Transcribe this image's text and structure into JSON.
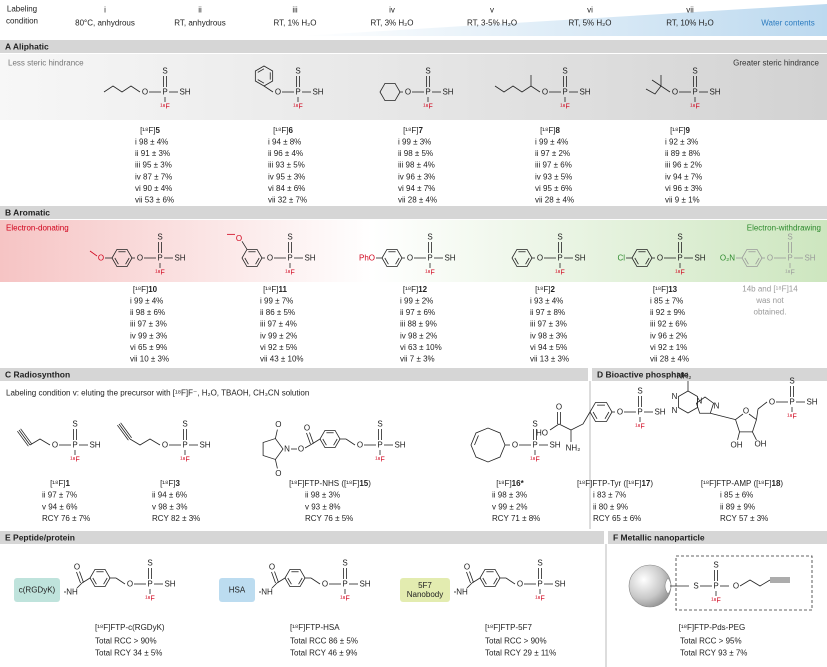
{
  "header": {
    "title_lines": [
      "Labeling",
      "condition"
    ],
    "conditions": [
      {
        "id": "i",
        "text": "80°C, anhydrous"
      },
      {
        "id": "ii",
        "text": "RT, anhydrous"
      },
      {
        "id": "iii",
        "text": "RT, 1% H₂O"
      },
      {
        "id": "iv",
        "text": "RT, 3% H₂O"
      },
      {
        "id": "v",
        "text": "RT, 3-5% H₂O"
      },
      {
        "id": "vi",
        "text": "RT, 5% H₂O"
      },
      {
        "id": "vii",
        "text": "RT, 10% H₂O"
      }
    ],
    "axis": "Water contents"
  },
  "atoms": {
    "S": "S",
    "P": "P",
    "O": "O",
    "SH": "SH",
    "F": "¹⁸F",
    "NH": "NH",
    "NH2": "NH₂",
    "HO": "HO",
    "OH": "OH",
    "N": "N"
  },
  "aliphatic": {
    "title": "A Aliphatic",
    "left": "Less steric hindrance",
    "right": "Greater steric hindrance",
    "compounds": [
      {
        "label": [
          "[¹⁸F]",
          "5"
        ],
        "yields": [
          "i 98 ± 4%",
          "ii 91 ± 3%",
          "iii 95 ± 3%",
          "iv 87 ± 7%",
          "vi 90 ± 4%",
          "vii 53 ± 6%"
        ]
      },
      {
        "label": [
          "[¹⁸F]",
          "6"
        ],
        "yields": [
          "i 94 ± 8%",
          "ii 96 ± 4%",
          "iii 93 ± 5%",
          "iv 95 ± 3%",
          "vi 84 ± 6%",
          "vii 32 ± 7%"
        ]
      },
      {
        "label": [
          "[¹⁸F]",
          "7"
        ],
        "yields": [
          "i 99 ± 3%",
          "ii 98 ± 5%",
          "iii 98 ± 4%",
          "iv 96 ± 3%",
          "vi 94 ± 7%",
          "vii 28 ± 4%"
        ]
      },
      {
        "label": [
          "[¹⁸F]",
          "8"
        ],
        "yields": [
          "i 99 ± 4%",
          "ii 97 ± 2%",
          "iii 97 ± 6%",
          "iv 93 ± 5%",
          "vi 95 ± 6%",
          "vii 28 ± 4%"
        ]
      },
      {
        "label": [
          "[¹⁸F]",
          "9"
        ],
        "yields": [
          "i 92 ± 3%",
          "ii 89 ± 8%",
          "iii 96 ± 2%",
          "iv 94 ± 7%",
          "vi 96 ± 3%",
          "vii 9 ± 1%"
        ]
      }
    ]
  },
  "aromatic": {
    "title": "B Aromatic",
    "left": "Electron-donating",
    "right": "Electron-withdrawing",
    "substituents": {
      "PhO": "PhO",
      "Cl": "Cl",
      "NO2": "O₂N"
    },
    "compounds": [
      {
        "label": [
          "[¹⁸F]",
          "10"
        ],
        "yields": [
          "i 99 ± 4%",
          "ii 98 ± 6%",
          "iii 97 ± 3%",
          "iv 99 ± 3%",
          "vi 65 ± 9%",
          "vii 10 ± 3%"
        ]
      },
      {
        "label": [
          "[¹⁸F]",
          "11"
        ],
        "yields": [
          "i 99 ± 7%",
          "ii 86 ± 5%",
          "iii 97 ± 4%",
          "iv 99 ± 2%",
          "vi 92 ± 5%",
          "vii 43 ± 10%"
        ]
      },
      {
        "label": [
          "[¹⁸F]",
          "12"
        ],
        "yields": [
          "i 99 ± 2%",
          "ii 97 ± 6%",
          "iii 88 ± 9%",
          "iv 98 ± 2%",
          "vi 63 ± 10%",
          "vii 7 ± 3%"
        ]
      },
      {
        "label": [
          "[¹⁸F]",
          "2"
        ],
        "yields": [
          "i 93 ± 4%",
          "ii 97 ± 8%",
          "iii 97 ± 3%",
          "iv 98 ± 3%",
          "vi 94 ± 5%",
          "vii 13 ± 3%"
        ]
      },
      {
        "label": [
          "[¹⁸F]",
          "13"
        ],
        "yields": [
          "i 85 ± 7%",
          "ii 92 ± 9%",
          "iii 92 ± 6%",
          "iv 96 ± 2%",
          "vi 92 ± 1%",
          "vii 28 ± 4%"
        ]
      }
    ],
    "not_obtained": [
      "14b and [¹⁸F]14",
      "was not",
      "obtained."
    ]
  },
  "radiosynthon": {
    "title": "C Radiosynthon",
    "condition": "Labeling condition v: eluting the precursor with [¹⁸F]F⁻, H₂O, TBAOH, CH₃CN solution",
    "compounds": [
      {
        "label": [
          "[¹⁸F]",
          "1"
        ],
        "yields": [
          "ii 97 ± 7%",
          "v 94 ± 6%",
          "RCY 76 ± 7%"
        ]
      },
      {
        "label": [
          "[¹⁸F]",
          "3"
        ],
        "yields": [
          "ii 94 ± 6%",
          "v 98 ± 3%",
          "RCY 82 ± 3%"
        ]
      },
      {
        "label": [
          "[¹⁸F]FTP-NHS ([¹⁸F]",
          "15",
          ")"
        ],
        "yields": [
          "ii 98 ± 3%",
          "v 93 ± 8%",
          "RCY 76 ± 5%"
        ]
      },
      {
        "label": [
          "[¹⁸F]",
          "16*"
        ],
        "yields": [
          "ii 98 ± 3%",
          "v 99 ± 2%",
          "RCY 71 ± 8%"
        ]
      }
    ]
  },
  "bioactive": {
    "title": "D Bioactive phosphate",
    "compounds": [
      {
        "label": [
          "[¹⁸F]FTP-Tyr ([¹⁸F]",
          "17",
          ")"
        ],
        "yields": [
          "i 83 ± 7%",
          "ii 80 ± 9%",
          "RCY 65 ± 6%"
        ]
      },
      {
        "label": [
          "[¹⁸F]FTP-AMP ([¹⁸F]",
          "18",
          ")"
        ],
        "yields": [
          "i 85 ± 6%",
          "ii 89 ± 9%",
          "RCY 57 ± 3%"
        ]
      }
    ]
  },
  "peptide": {
    "title": "E Peptide/protein",
    "compounds": [
      {
        "carrier": [
          "c(RGDyK)"
        ],
        "label": [
          "[¹⁸F]FTP-c(RGDyK)"
        ],
        "yields": [
          "Total RCC > 90%",
          "Total RCY 34 ± 5%"
        ]
      },
      {
        "carrier": [
          "HSA"
        ],
        "label": [
          "[¹⁸F]FTP-HSA"
        ],
        "yields": [
          "Total RCC 86 ± 5%",
          "Total RCY 46 ± 9%"
        ]
      },
      {
        "carrier": [
          "5F7",
          "Nanobody"
        ],
        "label": [
          "[¹⁸F]FTP-5F7"
        ],
        "yields": [
          "Total RCC > 90%",
          "Total RCY 29 ± 11%"
        ]
      }
    ]
  },
  "nanoparticle": {
    "title": "F Metallic nanoparticle",
    "label": [
      "[¹⁸F]FTP-Pds-PEG"
    ],
    "yields": [
      "Total RCC > 95%",
      "Total RCY 93 ± 7%"
    ]
  }
}
